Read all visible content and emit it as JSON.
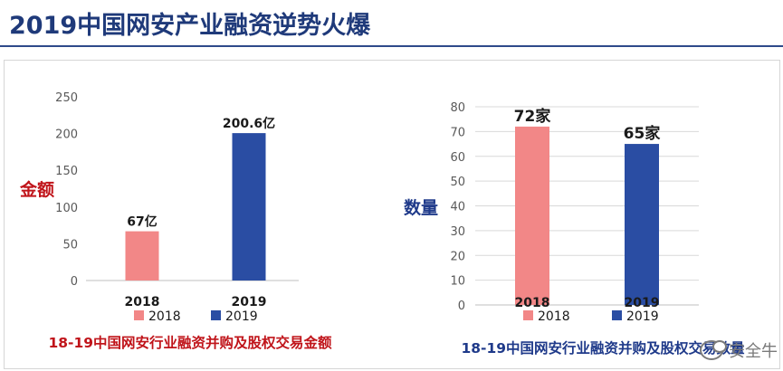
{
  "page": {
    "title": "2019中国网安产业融资逆势火爆",
    "watermark": "安全牛"
  },
  "colors": {
    "series_2018": "#f28787",
    "series_2019": "#2a4da3",
    "title": "#1f3a7a",
    "caption_left": "#c0141a",
    "caption_right": "#1f3a8a",
    "ylabel_left": "#c0141a",
    "ylabel_right": "#1f3a8a"
  },
  "chart_data": [
    {
      "type": "bar",
      "categories": [
        "2018",
        "2019"
      ],
      "values": [
        67,
        200.6
      ],
      "data_labels": [
        "67亿",
        "200.6亿"
      ],
      "ylabel": "金额",
      "ylim": [
        0,
        250
      ],
      "yticks": [
        "0",
        "50",
        "100",
        "150",
        "200",
        "250"
      ],
      "legend": [
        "2018",
        "2019"
      ],
      "legend_position": "bottom",
      "caption": "18-19中国网安行业融资并购及股权交易金额",
      "grid": false
    },
    {
      "type": "bar",
      "categories": [
        "2018",
        "2019"
      ],
      "values": [
        72,
        65
      ],
      "data_labels": [
        "72家",
        "65家"
      ],
      "ylabel": "数量",
      "ylim": [
        0,
        80
      ],
      "yticks": [
        "0",
        "10",
        "20",
        "30",
        "40",
        "50",
        "60",
        "70",
        "80"
      ],
      "legend": [
        "2018",
        "2019"
      ],
      "legend_position": "bottom",
      "caption": "18-19中国网安行业融资并购及股权交易数量",
      "grid": true
    }
  ]
}
